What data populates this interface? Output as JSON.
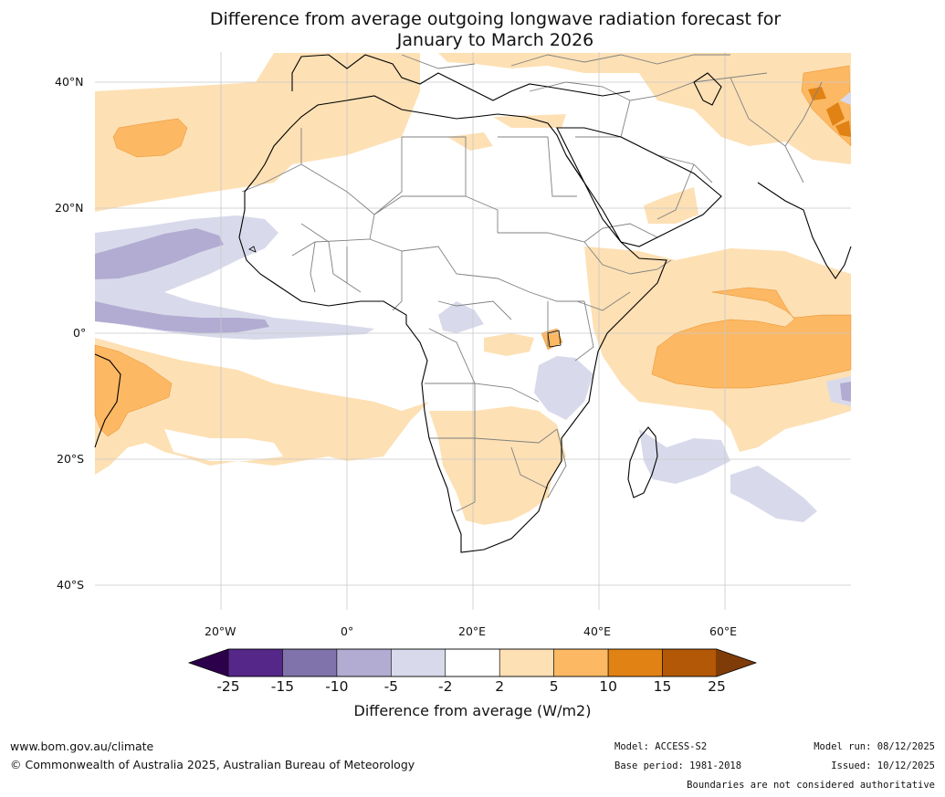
{
  "title": {
    "line1": "Difference from average outgoing longwave radiation forecast for",
    "line2": "January to March 2026"
  },
  "map": {
    "lat_labels": [
      "40°N",
      "20°N",
      "0°",
      "20°S",
      "40°S"
    ],
    "lon_labels": [
      "20°W",
      "0°",
      "20°E",
      "40°E",
      "60°E"
    ],
    "colors": {
      "ocean": "#ffffff",
      "gridline": "#c8c8c8",
      "coast": "#000000",
      "border": "#808080",
      "pos_2_5": "#fde0b4",
      "pos_5_10": "#fdb863",
      "pos_10_15": "#e08214",
      "pos_15_25": "#b35806",
      "neg_2_5": "#d8daeb",
      "neg_5_10": "#b2abd2",
      "neg_10_15": "#8073ac",
      "neg_15_25": "#542788"
    }
  },
  "colorbar": {
    "ticks": [
      "-25",
      "-15",
      "-10",
      "-5",
      "-2",
      "2",
      "5",
      "10",
      "15",
      "25"
    ],
    "segment_colors": [
      "#542788",
      "#8073ac",
      "#b2abd2",
      "#d8daeb",
      "#ffffff",
      "#fde0b4",
      "#fdb863",
      "#e08214",
      "#b35806"
    ],
    "low_extend_color": "#2d004b",
    "high_extend_color": "#7f3b08",
    "title": "Difference from average (W/m2)"
  },
  "footer": {
    "website": "www.bom.gov.au/climate",
    "copyright": "© Commonwealth of Australia 2025, Australian Bureau of Meteorology",
    "model": "Model: ACCESS-S2",
    "base_period": "Base period: 1981-2018",
    "model_run": "Model run: 08/12/2025",
    "issued": "Issued: 10/12/2025",
    "disclaimer": "Boundaries are not considered authoritative"
  }
}
